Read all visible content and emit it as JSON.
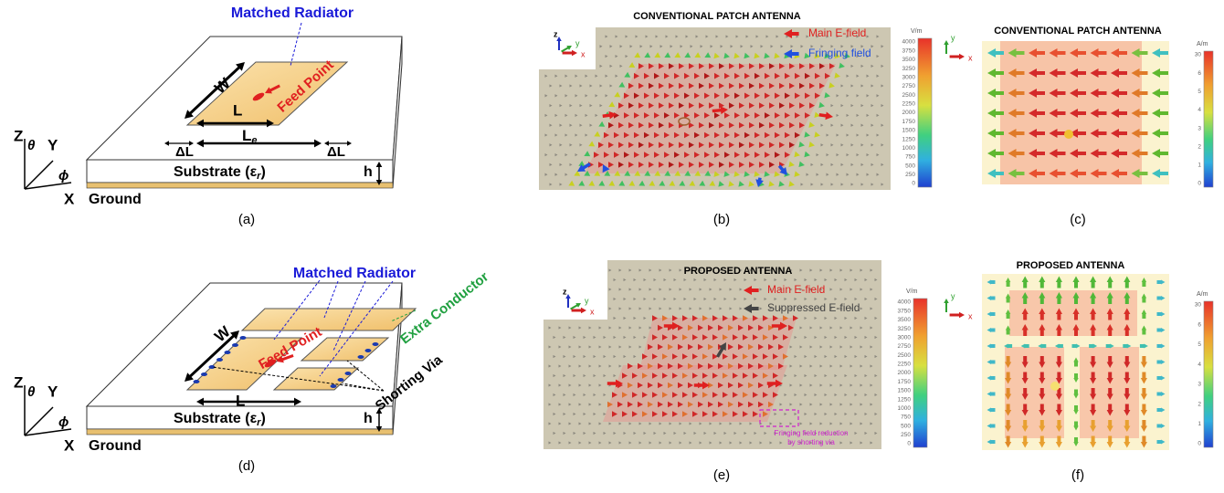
{
  "panels": {
    "a": {
      "caption": "(a)",
      "radiator": "Matched Radiator",
      "feed": "Feed Point",
      "width": "W",
      "length": "L",
      "eff_length": {
        "text": "L",
        "sub": "e"
      },
      "delta_left": "ΔL",
      "delta_right": "ΔL",
      "substrate": {
        "text": "Substrate (ε",
        "sub": "r",
        "close": ")"
      },
      "height": "h",
      "ground": "Ground",
      "axes": {
        "z": "Z",
        "y": "Y",
        "x": "X",
        "theta": "θ",
        "phi": "ϕ"
      }
    },
    "b": {
      "caption": "(b)",
      "title": "CONVENTIONAL PATCH ANTENNA",
      "legend": [
        "Main E-field",
        "Fringing field"
      ],
      "triad": {
        "z": "z",
        "y": "y",
        "x": "x"
      },
      "unit": "V/m",
      "scale": [
        4000,
        3750,
        3500,
        3250,
        3000,
        2750,
        2500,
        2250,
        2000,
        1750,
        1500,
        1250,
        1000,
        750,
        500,
        250,
        0
      ]
    },
    "c": {
      "caption": "(c)",
      "title": "CONVENTIONAL PATCH ANTENNA",
      "triad": {
        "y": "y",
        "x": "x"
      },
      "unit": "A/m",
      "scale": [
        30,
        6,
        5,
        4,
        3,
        2,
        1,
        0
      ]
    },
    "d": {
      "caption": "(d)",
      "radiator": "Matched Radiator",
      "conductor": "Extra Conductor",
      "feed": "Feed Point",
      "via": "Shorting Via",
      "width": "W",
      "length": "L",
      "substrate": {
        "text": "Substrate (ε",
        "sub": "r",
        "close": ")"
      },
      "height": "h",
      "ground": "Ground",
      "axes": {
        "z": "Z",
        "y": "Y",
        "x": "X",
        "theta": "θ",
        "phi": "ϕ"
      }
    },
    "e": {
      "caption": "(e)",
      "title": "PROPOSED ANTENNA",
      "legend": [
        "Main E-field",
        "Suppressed E-field"
      ],
      "note": [
        "Fringing field reduction",
        "by shorting via"
      ],
      "triad": {
        "z": "z",
        "y": "y",
        "x": "x"
      },
      "unit": "V/m",
      "scale": [
        4000,
        3750,
        3500,
        3250,
        3000,
        2750,
        2500,
        2250,
        2000,
        1750,
        1500,
        1250,
        1000,
        750,
        500,
        250,
        0
      ]
    },
    "f": {
      "caption": "(f)",
      "title": "PROPOSED ANTENNA",
      "triad": {
        "y": "y",
        "x": "x"
      },
      "unit": "A/m",
      "scale": [
        30,
        6,
        5,
        4,
        3,
        2,
        1,
        0
      ]
    }
  }
}
